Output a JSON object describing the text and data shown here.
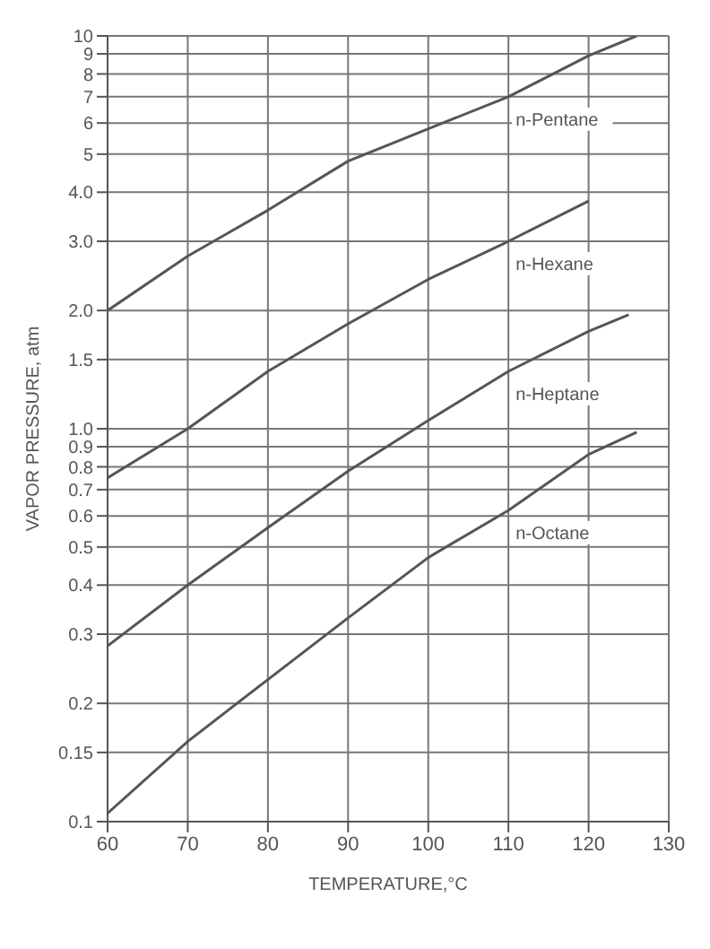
{
  "chart_data": {
    "type": "line",
    "xlabel": "TEMPERATURE,°C",
    "ylabel": "VAPOR PRESSURE, atm",
    "log": "y",
    "grid": true,
    "legend": false,
    "marker": "none",
    "line_style": "solid",
    "xlim": [
      60,
      130
    ],
    "xticks": [
      60,
      70,
      80,
      90,
      100,
      110,
      120,
      130
    ],
    "ylim": [
      0.1,
      10
    ],
    "yticks": [
      0.1,
      0.15,
      0.2,
      0.3,
      0.4,
      0.5,
      0.6,
      0.7,
      0.8,
      0.9,
      {
        "value": 1,
        "label": "1.0"
      },
      1.5,
      {
        "value": 2,
        "label": "2.0"
      },
      {
        "value": 3,
        "label": "3.0"
      },
      {
        "value": 4,
        "label": "4.0"
      },
      5,
      6,
      7,
      8,
      9,
      10
    ],
    "series": [
      {
        "name": "n-Pentane",
        "color": "#555555",
        "x": [
          60,
          70,
          80,
          90,
          100,
          110,
          120,
          126
        ],
        "values": [
          2.0,
          2.75,
          3.6,
          4.8,
          5.8,
          7.0,
          8.9,
          10
        ]
      },
      {
        "name": "n-Hexane",
        "color": "#555555",
        "x": [
          60,
          70,
          80,
          90,
          100,
          110,
          120
        ],
        "values": [
          0.75,
          1.0,
          1.4,
          1.85,
          2.4,
          3.0,
          3.8
        ]
      },
      {
        "name": "n-Heptane",
        "color": "#555555",
        "x": [
          60,
          70,
          80,
          90,
          100,
          110,
          120,
          125
        ],
        "values": [
          0.28,
          0.4,
          0.56,
          0.78,
          1.05,
          1.4,
          1.77,
          1.95
        ]
      },
      {
        "name": "n-Octane",
        "color": "#555555",
        "x": [
          60,
          70,
          80,
          90,
          100,
          110,
          120,
          126
        ],
        "values": [
          0.105,
          0.16,
          0.23,
          0.33,
          0.47,
          0.62,
          0.86,
          0.98
        ]
      }
    ]
  }
}
